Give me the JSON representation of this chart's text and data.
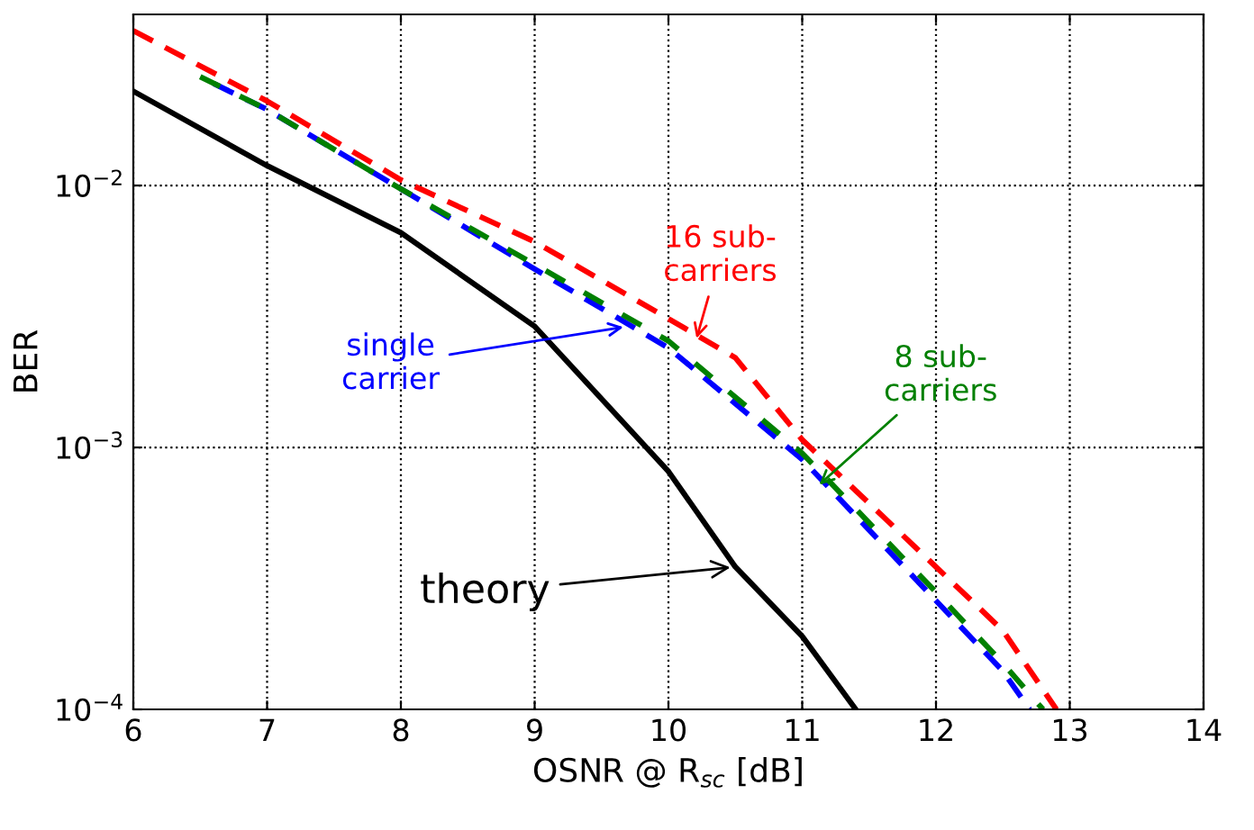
{
  "chart_data": {
    "type": "line",
    "xlabel": "OSNR @ R$_{sc}$ [dB]",
    "ylabel": "BER",
    "log": "y",
    "grid": true,
    "xlim": [
      6,
      14
    ],
    "xticks": [
      6,
      7,
      8,
      9,
      10,
      11,
      12,
      13,
      14
    ],
    "ylim": [
      0.0001,
      0.045
    ],
    "yticks": [
      {
        "value": 0.0001,
        "label": "10$^{−4}$"
      },
      {
        "value": 0.001,
        "label": "10$^{−3}$"
      },
      {
        "value": 0.01,
        "label": "10$^{−2}$"
      }
    ],
    "series": [
      {
        "color": "#000000",
        "line_style": "solid",
        "x": [
          6,
          7,
          8,
          9,
          10,
          10.5,
          11,
          11.4
        ],
        "values": [
          0.0229,
          0.0119,
          0.0066,
          0.0029,
          0.00081,
          0.00035,
          0.00019,
          0.0001
        ]
      },
      {
        "color": "#0000ff",
        "line_style": "dashed",
        "x": [
          6.6,
          7,
          8,
          9,
          10,
          11,
          12,
          12.5,
          12.7
        ],
        "values": [
          0.0245,
          0.0195,
          0.0097,
          0.0048,
          0.0024,
          0.0009,
          0.00026,
          0.00014,
          0.0001
        ]
      },
      {
        "color": "#008000",
        "line_style": "dashed",
        "x": [
          6.5,
          7,
          8,
          9,
          10,
          11,
          12,
          12.5,
          12.8
        ],
        "values": [
          0.026,
          0.0195,
          0.0097,
          0.005,
          0.00255,
          0.00095,
          0.00028,
          0.00015,
          0.0001
        ]
      },
      {
        "color": "#ff0000",
        "line_style": "dashed",
        "x": [
          6,
          7,
          8,
          9,
          10,
          10.5,
          11,
          12,
          12.5,
          12.9
        ],
        "values": [
          0.039,
          0.021,
          0.0105,
          0.0061,
          0.0031,
          0.0022,
          0.00107,
          0.00035,
          0.0002,
          0.0001
        ]
      }
    ],
    "annotations": [
      {
        "text": "theory",
        "x": 10.5,
        "y": 0.00035
      },
      {
        "text": "single\ncarrier",
        "x": 9.7,
        "y": 0.0029
      },
      {
        "text": "8 sub-\ncarriers",
        "x": 11.1,
        "y": 0.0007
      },
      {
        "text": "16 sub-\ncarriers",
        "x": 10.2,
        "y": 0.0025
      }
    ]
  }
}
